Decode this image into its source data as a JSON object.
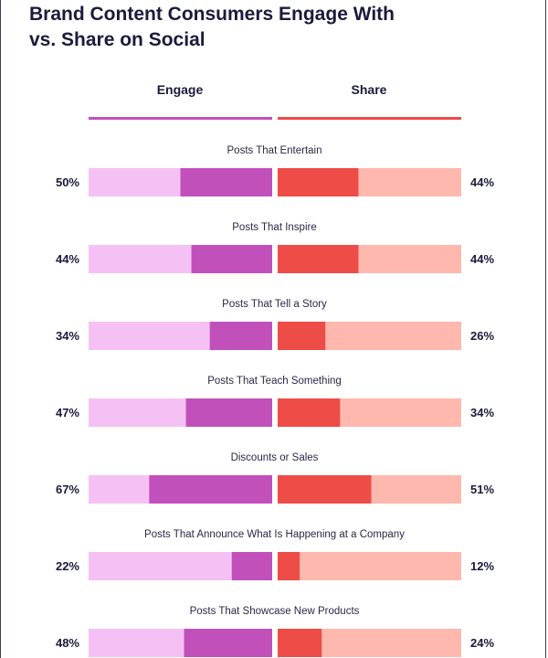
{
  "title_line1": "Brand Content Consumers Engage With",
  "title_line2": "vs. Share on Social",
  "colors": {
    "engage_dark": "#c150bb",
    "engage_light": "#f5c1f4",
    "share_dark": "#ee4c47",
    "share_light": "#ffb8ae"
  },
  "chart_data": {
    "type": "bar",
    "title": "Brand Content Consumers Engage With vs. Share on Social",
    "series": [
      {
        "name": "Engage",
        "values": [
          50,
          44,
          34,
          47,
          67,
          22,
          48
        ]
      },
      {
        "name": "Share",
        "values": [
          44,
          44,
          26,
          34,
          51,
          12,
          24
        ]
      }
    ],
    "categories": [
      "Posts That Entertain",
      "Posts That Inspire",
      "Posts That Tell a Story",
      "Posts That Teach Something",
      "Discounts or Sales",
      "Posts That Announce What Is Happening at a Company",
      "Posts That Showcase New Products"
    ],
    "value_labels_engage": [
      "50%",
      "44%",
      "34%",
      "47%",
      "67%",
      "22%",
      "48%"
    ],
    "value_labels_share": [
      "44%",
      "44%",
      "26%",
      "34%",
      "51%",
      "12%",
      "24%"
    ],
    "xlim": [
      0,
      100
    ]
  }
}
